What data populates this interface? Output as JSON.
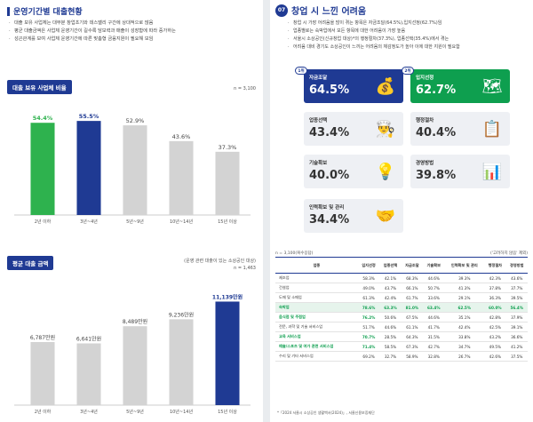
{
  "left": {
    "title": "운영기간별 대출현황",
    "bullets": [
      "대출 보유 사업체는 대부분 창업초기와 데스밸리 구간에 상대적으로 많음",
      "평균 대출금액은 사업체 운영기간이 길수록 담보력과 매출이 성장함에 따라 증가하는",
      "성곤관계를 보여 사업체 운영기간에 따른 맞춤형 금융지원이 필요해 보임"
    ],
    "chart1_label": "대출 보유 사업체 비율",
    "chart1_n": "n = 3,100",
    "chart2_label": "평균 대출 금액",
    "chart2_note": "(운영 관련 대출이 있는 소상공인 대상)",
    "chart2_n": "n = 1,463"
  },
  "chart_data": [
    {
      "type": "bar",
      "title": "대출 보유 사업체 비율",
      "categories": [
        "2년 이하",
        "3년~4년",
        "5년~9년",
        "10년~14년",
        "15년 이상"
      ],
      "values": [
        54.4,
        55.5,
        52.9,
        43.6,
        37.3
      ],
      "value_labels": [
        "54.4%",
        "55.5%",
        "52.9%",
        "43.6%",
        "37.3%"
      ],
      "ylim": [
        0,
        65
      ],
      "colors": [
        "#2eb24e",
        "#1f3a93",
        "#d3d3d3",
        "#d3d3d3",
        "#d3d3d3"
      ],
      "label_colors": [
        "#2eb24e",
        "#1f3a93",
        "#444444",
        "#444444",
        "#444444"
      ]
    },
    {
      "type": "bar",
      "title": "평균 대출 금액",
      "categories": [
        "2년 이하",
        "3년~4년",
        "5년~9년",
        "10년~14년",
        "15년 이상"
      ],
      "values": [
        6787,
        6641,
        8489,
        9236,
        11139
      ],
      "value_labels": [
        "6,787만원",
        "6,641만원",
        "8,489만원",
        "9,236만원",
        "11,139만원"
      ],
      "ylim": [
        0,
        13000
      ],
      "colors": [
        "#d3d3d3",
        "#d3d3d3",
        "#d3d3d3",
        "#d3d3d3",
        "#1f3a93"
      ],
      "label_colors": [
        "#444444",
        "#444444",
        "#444444",
        "#444444",
        "#1f3a93"
      ]
    }
  ],
  "right": {
    "number": "07",
    "title": "창업 시 느낀 어려움",
    "bullets": [
      "창업 시 가장 어려움을 많이 겪는 항목은 자금조달(64.5%),입지선정(62.7%)임",
      "업종별로는 숙박업에서 모든 항목에 대한 어려움이 가장 높음",
      "서울시 소상공인(신규창업 대상)*의 행정절차(37.3%), 업종선택(35.4%)에서 겪는",
      "어려움 대비 경기도 소상공인이 느끼는 어려움의 체감정도가 높아 이에 대한 지원이 필요함"
    ],
    "cards": [
      {
        "rank": "1위",
        "label": "자금조달",
        "value": "64.5%",
        "icon": "money-icon",
        "glyph": "💰",
        "style": "blue"
      },
      {
        "rank": "2위",
        "label": "입지선정",
        "value": "62.7%",
        "icon": "map-icon",
        "glyph": "🗺",
        "style": "green"
      },
      {
        "rank": "",
        "label": "업종선택",
        "value": "43.4%",
        "icon": "chef-icon",
        "glyph": "👨‍🍳",
        "style": "lightc"
      },
      {
        "rank": "",
        "label": "행정절차",
        "value": "40.4%",
        "icon": "document-icon",
        "glyph": "📋",
        "style": "lightc"
      },
      {
        "rank": "",
        "label": "기술확보",
        "value": "40.0%",
        "icon": "lightbulb-icon",
        "glyph": "💡",
        "style": "lightc"
      },
      {
        "rank": "",
        "label": "경영방법",
        "value": "39.8%",
        "icon": "chart-icon",
        "glyph": "📊",
        "style": "lightc"
      },
      {
        "rank": "",
        "label": "인력확보 및 관리",
        "value": "34.4%",
        "icon": "handshake-icon",
        "glyph": "🤝",
        "style": "lightc"
      }
    ],
    "table_n": "n = 3,100(복수응답)",
    "table_note": "('고려하지 않음' 제외)",
    "table_headers": [
      "업종",
      "입지선정",
      "업종선택",
      "자금조달",
      "기술확보",
      "인력확보 및 관리",
      "행정절차",
      "경영방법"
    ],
    "table_rows": [
      {
        "cells": [
          "제조업",
          "58.3%",
          "42.1%",
          "68.3%",
          "44.6%",
          "39.3%",
          "42.3%",
          "43.6%"
        ],
        "hl": false
      },
      {
        "cells": [
          "건설업",
          "49.0%",
          "43.7%",
          "66.1%",
          "50.7%",
          "41.3%",
          "37.8%",
          "37.7%"
        ],
        "hl": false
      },
      {
        "cells": [
          "도매 및 소매업",
          "61.3%",
          "42.4%",
          "61.7%",
          "33.6%",
          "29.1%",
          "36.3%",
          "39.5%"
        ],
        "hl": false
      },
      {
        "cells": [
          "숙박업",
          "78.6%",
          "63.3%",
          "81.0%",
          "63.4%",
          "62.5%",
          "60.0%",
          "56.4%"
        ],
        "hl": true
      },
      {
        "cells": [
          "음식점 및 주점업",
          "76.2%",
          "50.6%",
          "67.5%",
          "44.6%",
          "35.1%",
          "42.8%",
          "37.9%"
        ],
        "hl": false
      },
      {
        "cells": [
          "전문, 과학 및 기술 서비스업",
          "51.7%",
          "44.6%",
          "61.1%",
          "41.7%",
          "42.4%",
          "42.5%",
          "39.1%"
        ],
        "hl": false
      },
      {
        "cells": [
          "교육 서비스업",
          "70.7%",
          "28.5%",
          "64.3%",
          "31.5%",
          "33.8%",
          "43.2%",
          "36.6%"
        ],
        "hl": false
      },
      {
        "cells": [
          "예술/스포츠 및 여가 관련 서비스업",
          "71.4%",
          "58.5%",
          "67.3%",
          "42.7%",
          "34.7%",
          "49.5%",
          "41.2%"
        ],
        "hl": false
      },
      {
        "cells": [
          "수리 및 기타 서비스업",
          "69.2%",
          "32.7%",
          "58.9%",
          "32.8%",
          "26.7%",
          "42.6%",
          "37.5%"
        ],
        "hl": false
      }
    ],
    "green_first_col_rows": [
      3,
      4,
      6,
      7
    ],
    "source": "*「2024 서울시 소상공인 생활백서(2024)」, 서울신용보증재단"
  }
}
